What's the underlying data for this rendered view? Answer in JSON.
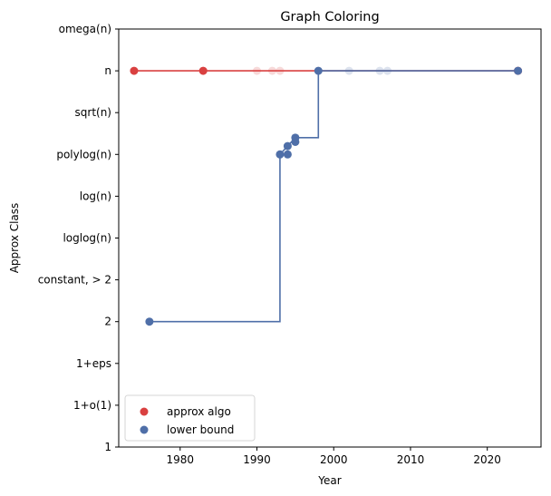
{
  "chart_data": {
    "type": "scatter",
    "title": "Graph Coloring",
    "xlabel": "Year",
    "ylabel": "Approx Class",
    "xlim": [
      1972,
      2027
    ],
    "x_ticks": [
      1980,
      1990,
      2000,
      2010,
      2020
    ],
    "y_categories": [
      "1",
      "1+o(1)",
      "1+eps",
      "2",
      "constant, > 2",
      "loglog(n)",
      "log(n)",
      "polylog(n)",
      "sqrt(n)",
      "n",
      "omega(n)"
    ],
    "legend": {
      "position": "lower-left"
    },
    "grid": false,
    "series": [
      {
        "name": "approx algo",
        "color": "#d94040",
        "step_line": [
          [
            1974,
            "n"
          ],
          [
            2024,
            "n"
          ]
        ],
        "points": [
          {
            "x": 1974,
            "y": "n",
            "faded": false
          },
          {
            "x": 1983,
            "y": "n",
            "faded": false
          },
          {
            "x": 1990,
            "y": "n",
            "faded": true
          },
          {
            "x": 1992,
            "y": "n",
            "faded": true
          },
          {
            "x": 1993,
            "y": "n",
            "faded": true
          },
          {
            "x": 2024,
            "y": "n",
            "faded": false
          }
        ]
      },
      {
        "name": "lower bound",
        "color": "#4f6fa8",
        "step_line": [
          [
            1976,
            "2"
          ],
          [
            1993,
            "2"
          ],
          [
            1993,
            "polylog(n)"
          ],
          [
            1995,
            "polylog(n)+0.4"
          ],
          [
            1998,
            "polylog(n)+0.4"
          ],
          [
            1998,
            "n"
          ],
          [
            2024,
            "n"
          ]
        ],
        "points": [
          {
            "x": 1976,
            "y": "2",
            "faded": false
          },
          {
            "x": 1993,
            "y": "polylog(n)",
            "faded": false
          },
          {
            "x": 1994,
            "y": "polylog(n)",
            "faded": false
          },
          {
            "x": 1994,
            "y": "polylog(n)+0.2",
            "faded": false
          },
          {
            "x": 1995,
            "y": "polylog(n)+0.3",
            "faded": false
          },
          {
            "x": 1995,
            "y": "polylog(n)+0.4",
            "faded": false
          },
          {
            "x": 1998,
            "y": "n",
            "faded": false
          },
          {
            "x": 2002,
            "y": "n",
            "faded": true
          },
          {
            "x": 2006,
            "y": "n",
            "faded": true
          },
          {
            "x": 2007,
            "y": "n",
            "faded": true
          },
          {
            "x": 2024,
            "y": "n",
            "faded": false
          }
        ]
      }
    ]
  }
}
